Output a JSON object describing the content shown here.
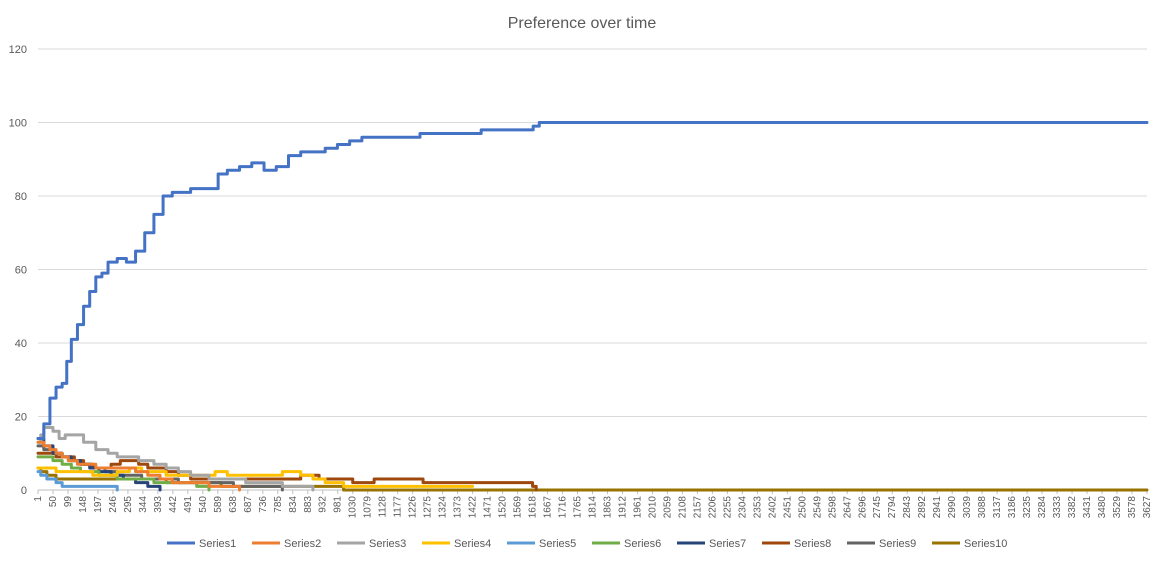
{
  "chart_data": {
    "type": "line",
    "title": "Preference over time",
    "xlabel": "",
    "ylabel": "",
    "ylim": [
      0,
      120
    ],
    "xlim": [
      1,
      3627
    ],
    "grid": true,
    "legend_position": "bottom",
    "yticks": [
      0,
      20,
      40,
      60,
      80,
      100,
      120
    ],
    "xticks": [
      1,
      50,
      99,
      148,
      197,
      246,
      295,
      344,
      393,
      442,
      491,
      540,
      589,
      638,
      687,
      736,
      785,
      834,
      883,
      932,
      981,
      1030,
      1079,
      1128,
      1177,
      1226,
      1275,
      1324,
      1373,
      1422,
      1471,
      1520,
      1569,
      1618,
      1667,
      1716,
      1765,
      1814,
      1863,
      1912,
      1961,
      2010,
      2059,
      2108,
      2157,
      2206,
      2255,
      2304,
      2353,
      2402,
      2451,
      2500,
      2549,
      2598,
      2647,
      2696,
      2745,
      2794,
      2843,
      2892,
      2941,
      2990,
      3039,
      3088,
      3137,
      3186,
      3235,
      3284,
      3333,
      3382,
      3431,
      3480,
      3529,
      3578,
      3627
    ],
    "series": [
      {
        "name": "Series1",
        "color": "#4472c4",
        "x": [
          1,
          20,
          40,
          60,
          80,
          95,
          110,
          130,
          150,
          170,
          190,
          210,
          230,
          260,
          290,
          320,
          350,
          380,
          410,
          440,
          470,
          500,
          530,
          560,
          590,
          620,
          660,
          700,
          740,
          780,
          820,
          860,
          900,
          940,
          980,
          1020,
          1060,
          1100,
          1150,
          1200,
          1250,
          1300,
          1350,
          1400,
          1450,
          1500,
          1550,
          1600,
          1620,
          1640,
          1700,
          2000,
          3000,
          3627
        ],
        "y": [
          14,
          18,
          25,
          28,
          29,
          35,
          41,
          45,
          50,
          54,
          58,
          59,
          62,
          63,
          62,
          65,
          70,
          75,
          80,
          81,
          81,
          82,
          82,
          82,
          86,
          87,
          88,
          89,
          87,
          88,
          91,
          92,
          92,
          93,
          94,
          95,
          96,
          96,
          96,
          96,
          97,
          97,
          97,
          97,
          98,
          98,
          98,
          98,
          99,
          100,
          100,
          100,
          100,
          100
        ]
      },
      {
        "name": "Series2",
        "color": "#ed7d31",
        "x": [
          1,
          20,
          40,
          60,
          80,
          100,
          130,
          160,
          190,
          220,
          250,
          280,
          320,
          360,
          400,
          440,
          480,
          520,
          560,
          600,
          660
        ],
        "y": [
          13,
          12,
          11,
          10,
          9,
          8,
          7,
          7,
          6,
          6,
          6,
          6,
          5,
          4,
          3,
          2,
          2,
          2,
          1,
          1,
          0
        ]
      },
      {
        "name": "Series3",
        "color": "#a5a5a5",
        "x": [
          1,
          10,
          20,
          35,
          50,
          70,
          90,
          110,
          150,
          190,
          230,
          260,
          290,
          330,
          380,
          420,
          460,
          500,
          560,
          620,
          680,
          740,
          800,
          860,
          900
        ],
        "y": [
          13,
          15,
          17,
          17,
          16,
          14,
          15,
          15,
          13,
          11,
          10,
          9,
          9,
          8,
          7,
          6,
          5,
          4,
          3,
          3,
          2,
          2,
          1,
          1,
          0
        ]
      },
      {
        "name": "Series4",
        "color": "#ffc000",
        "x": [
          1,
          30,
          60,
          100,
          140,
          180,
          220,
          260,
          300,
          340,
          380,
          420,
          460,
          500,
          540,
          580,
          620,
          680,
          740,
          800,
          860,
          900,
          940,
          1000,
          1100,
          1200,
          1300,
          1422
        ],
        "y": [
          6,
          6,
          5,
          5,
          5,
          4,
          4,
          5,
          6,
          5,
          5,
          4,
          4,
          4,
          4,
          5,
          4,
          4,
          4,
          5,
          4,
          3,
          2,
          1,
          1,
          1,
          1,
          1
        ]
      },
      {
        "name": "Series5",
        "color": "#5b9bd5",
        "x": [
          1,
          10,
          30,
          60,
          80,
          100,
          150,
          200,
          240,
          260
        ],
        "y": [
          5,
          4,
          3,
          2,
          1,
          1,
          1,
          1,
          1,
          0
        ]
      },
      {
        "name": "Series6",
        "color": "#70ad47",
        "x": [
          1,
          20,
          50,
          80,
          110,
          140,
          170,
          200,
          230,
          260,
          300,
          340,
          380,
          420,
          470,
          520,
          560
        ],
        "y": [
          9,
          9,
          8,
          7,
          6,
          5,
          5,
          4,
          4,
          3,
          3,
          3,
          2,
          2,
          2,
          1,
          0
        ]
      },
      {
        "name": "Series7",
        "color": "#264478",
        "x": [
          1,
          20,
          50,
          80,
          110,
          140,
          170,
          200,
          240,
          280,
          320,
          360,
          400
        ],
        "y": [
          14,
          12,
          10,
          9,
          8,
          7,
          6,
          5,
          4,
          3,
          2,
          1,
          0
        ]
      },
      {
        "name": "Series8",
        "color": "#9e480e",
        "x": [
          1,
          30,
          60,
          90,
          120,
          150,
          180,
          210,
          240,
          270,
          300,
          330,
          360,
          390,
          420,
          460,
          500,
          560,
          620,
          680,
          740,
          800,
          860,
          920,
          980,
          1030,
          1100,
          1150,
          1200,
          1260,
          1320,
          1400,
          1480,
          1560,
          1600,
          1618,
          1630
        ],
        "y": [
          10,
          10,
          9,
          9,
          8,
          7,
          6,
          6,
          7,
          8,
          8,
          7,
          6,
          6,
          5,
          4,
          3,
          3,
          3,
          3,
          3,
          3,
          4,
          3,
          3,
          2,
          3,
          3,
          3,
          2,
          2,
          2,
          2,
          2,
          2,
          1,
          0
        ]
      },
      {
        "name": "Series9",
        "color": "#636363",
        "x": [
          1,
          20,
          50,
          80,
          110,
          140,
          180,
          220,
          260,
          300,
          340,
          380,
          420,
          460,
          500,
          540,
          580,
          640,
          700,
          760,
          800
        ],
        "y": [
          12,
          11,
          10,
          9,
          8,
          7,
          6,
          5,
          4,
          4,
          3,
          3,
          3,
          2,
          2,
          2,
          2,
          1,
          1,
          1,
          0
        ]
      },
      {
        "name": "Series10",
        "color": "#997300",
        "x": [
          1,
          10,
          30,
          60,
          100,
          140,
          180,
          220,
          260,
          300,
          340,
          380,
          420,
          460,
          500,
          540,
          600,
          700,
          800,
          900,
          1000,
          1100,
          1200,
          1300,
          1400,
          1500,
          1618,
          1700,
          2000,
          3000,
          3627
        ],
        "y": [
          6,
          5,
          4,
          3,
          3,
          3,
          3,
          3,
          3,
          3,
          3,
          3,
          2,
          2,
          2,
          2,
          1,
          1,
          1,
          1,
          0,
          0,
          0,
          0,
          0,
          0,
          0,
          0,
          0,
          0,
          0
        ]
      }
    ]
  }
}
